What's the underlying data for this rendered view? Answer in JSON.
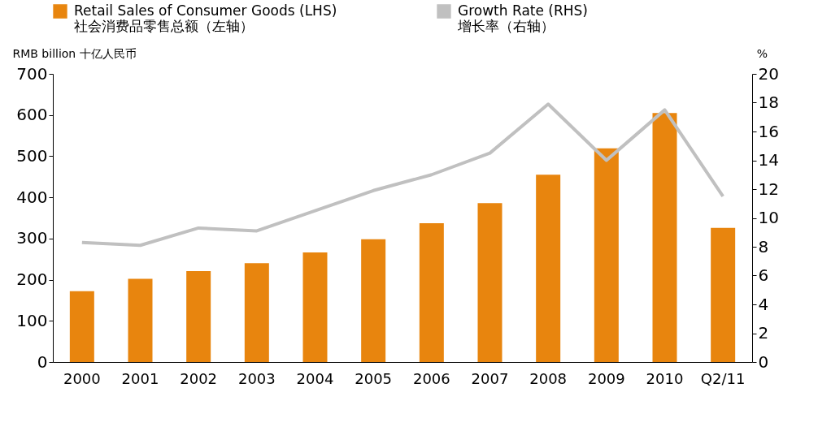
{
  "chart_data": {
    "type": "bar",
    "ylabel": "RMB billion 十亿人民币",
    "y2label": "%",
    "categories": [
      "2000",
      "2001",
      "2002",
      "2003",
      "2004",
      "2005",
      "2006",
      "2007",
      "2008",
      "2009",
      "2010",
      "Q2/11"
    ],
    "series": [
      {
        "name": "Retail Sales of Consumer Goods (LHS)\n社会消费品零售总额（左轴）",
        "color": "#e8850e",
        "values": [
          172,
          202,
          221,
          240,
          266,
          298,
          337,
          386,
          455,
          519,
          605,
          326
        ]
      },
      {
        "name": "Growth Rate (RHS)\n增长率（右轴）",
        "type": "line",
        "axis": "y2",
        "color": "#c0c0c0",
        "values": [
          8.3,
          8.1,
          9.3,
          9.1,
          10.5,
          11.9,
          13.0,
          14.5,
          17.9,
          14.0,
          17.5,
          11.5
        ]
      }
    ],
    "ylim": [
      0,
      700
    ],
    "yticks": [
      0,
      100,
      200,
      300,
      400,
      500,
      600,
      700
    ],
    "y2lim": [
      0,
      20
    ],
    "y2ticks": [
      0,
      2,
      4,
      6,
      8,
      10,
      12,
      14,
      16,
      18,
      20
    ],
    "legend": "top",
    "grid": false
  }
}
